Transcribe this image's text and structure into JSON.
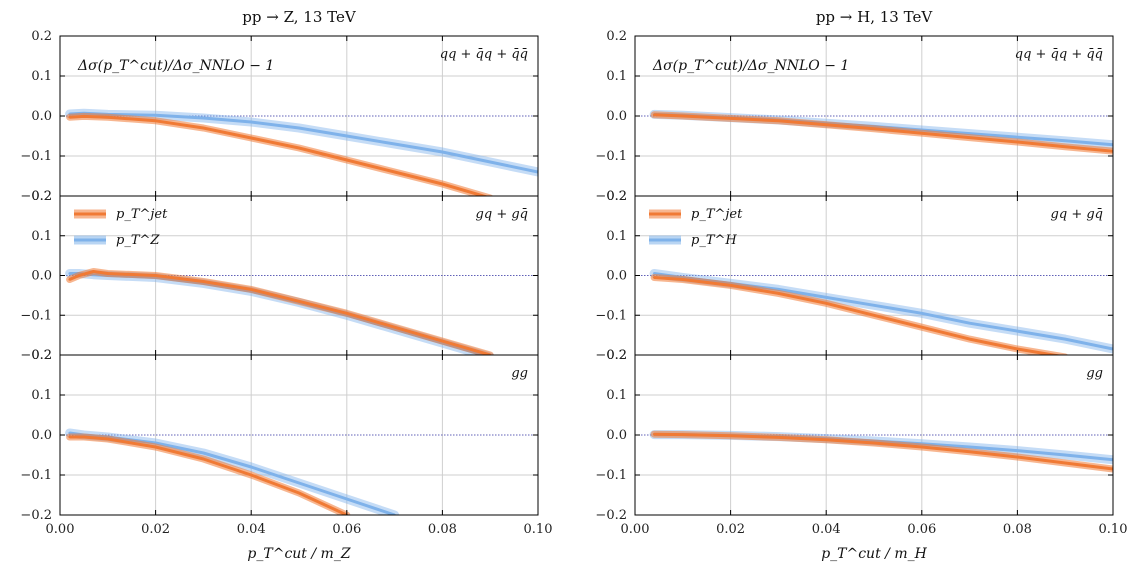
{
  "chart_data": {
    "type": "line",
    "colors": {
      "jet": "#f07a35",
      "boson": "#7fb2ea",
      "zeroline": "#2c2ca0",
      "grid": "#cfcfcf"
    },
    "shared_ylabel": "Δσ(p_T^cut)/Δσ_NNLO − 1",
    "xlim": [
      0.0,
      0.1
    ],
    "ylim": [
      -0.2,
      0.2
    ],
    "x_ticks": [
      "0.00",
      "0.02",
      "0.04",
      "0.06",
      "0.08",
      "0.10"
    ],
    "y_ticks": [
      "0.2",
      "0.1",
      "0.0",
      "−0.1",
      "−0.2"
    ],
    "grid": true,
    "columns": [
      {
        "title": "pp → Z, 13 TeV",
        "xlabel": "p_T^cut / m_Z",
        "legend": [
          "p_T^jet",
          "p_T^Z"
        ],
        "panels": [
          {
            "channel": "qq + q̄q + q̄q̄",
            "series": [
              {
                "name": "p_T^jet",
                "x": [
                  0.002,
                  0.005,
                  0.01,
                  0.02,
                  0.03,
                  0.04,
                  0.05,
                  0.06,
                  0.07,
                  0.08,
                  0.09
                ],
                "y": [
                  -0.003,
                  -0.001,
                  -0.003,
                  -0.012,
                  -0.03,
                  -0.055,
                  -0.08,
                  -0.11,
                  -0.14,
                  -0.17,
                  -0.205
                ]
              },
              {
                "name": "p_T^Z",
                "x": [
                  0.002,
                  0.005,
                  0.01,
                  0.02,
                  0.03,
                  0.04,
                  0.05,
                  0.06,
                  0.07,
                  0.08,
                  0.09,
                  0.1
                ],
                "y": [
                  0.005,
                  0.007,
                  0.004,
                  0.002,
                  -0.005,
                  -0.015,
                  -0.03,
                  -0.05,
                  -0.07,
                  -0.09,
                  -0.115,
                  -0.14
                ]
              }
            ]
          },
          {
            "channel": "gq + gq̄",
            "series": [
              {
                "name": "p_T^jet",
                "x": [
                  0.002,
                  0.004,
                  0.007,
                  0.01,
                  0.02,
                  0.03,
                  0.04,
                  0.05,
                  0.06,
                  0.07,
                  0.08,
                  0.09
                ],
                "y": [
                  -0.01,
                  0.0,
                  0.01,
                  0.005,
                  0.0,
                  -0.015,
                  -0.035,
                  -0.065,
                  -0.095,
                  -0.13,
                  -0.165,
                  -0.2
                ]
              },
              {
                "name": "p_T^Z",
                "x": [
                  0.002,
                  0.004,
                  0.007,
                  0.01,
                  0.02,
                  0.03,
                  0.04,
                  0.05,
                  0.06,
                  0.07,
                  0.08,
                  0.09
                ],
                "y": [
                  0.005,
                  0.005,
                  0.002,
                  0.0,
                  -0.005,
                  -0.02,
                  -0.04,
                  -0.068,
                  -0.1,
                  -0.135,
                  -0.17,
                  -0.205
                ]
              }
            ]
          },
          {
            "channel": "gg",
            "series": [
              {
                "name": "p_T^jet",
                "x": [
                  0.002,
                  0.005,
                  0.01,
                  0.02,
                  0.03,
                  0.04,
                  0.05,
                  0.06
                ],
                "y": [
                  -0.005,
                  -0.005,
                  -0.01,
                  -0.03,
                  -0.06,
                  -0.1,
                  -0.145,
                  -0.2
                ]
              },
              {
                "name": "p_T^Z",
                "x": [
                  0.002,
                  0.005,
                  0.01,
                  0.02,
                  0.03,
                  0.04,
                  0.05,
                  0.06,
                  0.07
                ],
                "y": [
                  0.005,
                  0.0,
                  -0.005,
                  -0.02,
                  -0.045,
                  -0.08,
                  -0.12,
                  -0.16,
                  -0.2
                ]
              }
            ]
          }
        ]
      },
      {
        "title": "pp → H, 13 TeV",
        "xlabel": "p_T^cut / m_H",
        "legend": [
          "p_T^jet",
          "p_T^H"
        ],
        "panels": [
          {
            "channel": "qq + q̄q + q̄q̄",
            "series": [
              {
                "name": "p_T^jet",
                "x": [
                  0.004,
                  0.01,
                  0.02,
                  0.03,
                  0.04,
                  0.05,
                  0.06,
                  0.07,
                  0.08,
                  0.09,
                  0.1
                ],
                "y": [
                  0.003,
                  0.0,
                  -0.006,
                  -0.012,
                  -0.022,
                  -0.032,
                  -0.043,
                  -0.054,
                  -0.065,
                  -0.077,
                  -0.088
                ]
              },
              {
                "name": "p_T^H",
                "x": [
                  0.004,
                  0.01,
                  0.02,
                  0.03,
                  0.04,
                  0.05,
                  0.06,
                  0.07,
                  0.08,
                  0.09,
                  0.1
                ],
                "y": [
                  0.004,
                  0.002,
                  -0.004,
                  -0.01,
                  -0.018,
                  -0.026,
                  -0.035,
                  -0.044,
                  -0.053,
                  -0.062,
                  -0.072
                ]
              }
            ]
          },
          {
            "channel": "gq + gq̄",
            "series": [
              {
                "name": "p_T^jet",
                "x": [
                  0.004,
                  0.01,
                  0.02,
                  0.03,
                  0.04,
                  0.05,
                  0.06,
                  0.07,
                  0.08,
                  0.09
                ],
                "y": [
                  -0.005,
                  -0.01,
                  -0.025,
                  -0.045,
                  -0.07,
                  -0.1,
                  -0.13,
                  -0.16,
                  -0.185,
                  -0.205
                ]
              },
              {
                "name": "p_T^H",
                "x": [
                  0.004,
                  0.01,
                  0.02,
                  0.03,
                  0.04,
                  0.05,
                  0.06,
                  0.07,
                  0.08,
                  0.09,
                  0.1
                ],
                "y": [
                  0.005,
                  -0.005,
                  -0.02,
                  -0.035,
                  -0.055,
                  -0.075,
                  -0.095,
                  -0.12,
                  -0.14,
                  -0.16,
                  -0.185
                ]
              }
            ]
          },
          {
            "channel": "gg",
            "series": [
              {
                "name": "p_T^jet",
                "x": [
                  0.004,
                  0.01,
                  0.02,
                  0.03,
                  0.04,
                  0.05,
                  0.06,
                  0.07,
                  0.08,
                  0.09,
                  0.1
                ],
                "y": [
                  0.002,
                  0.001,
                  -0.002,
                  -0.006,
                  -0.012,
                  -0.02,
                  -0.03,
                  -0.042,
                  -0.055,
                  -0.07,
                  -0.085
                ]
              },
              {
                "name": "p_T^H",
                "x": [
                  0.004,
                  0.01,
                  0.02,
                  0.03,
                  0.04,
                  0.05,
                  0.06,
                  0.07,
                  0.08,
                  0.09,
                  0.1
                ],
                "y": [
                  0.001,
                  0.001,
                  -0.001,
                  -0.004,
                  -0.009,
                  -0.015,
                  -0.022,
                  -0.03,
                  -0.039,
                  -0.05,
                  -0.062
                ]
              }
            ]
          }
        ]
      }
    ]
  }
}
